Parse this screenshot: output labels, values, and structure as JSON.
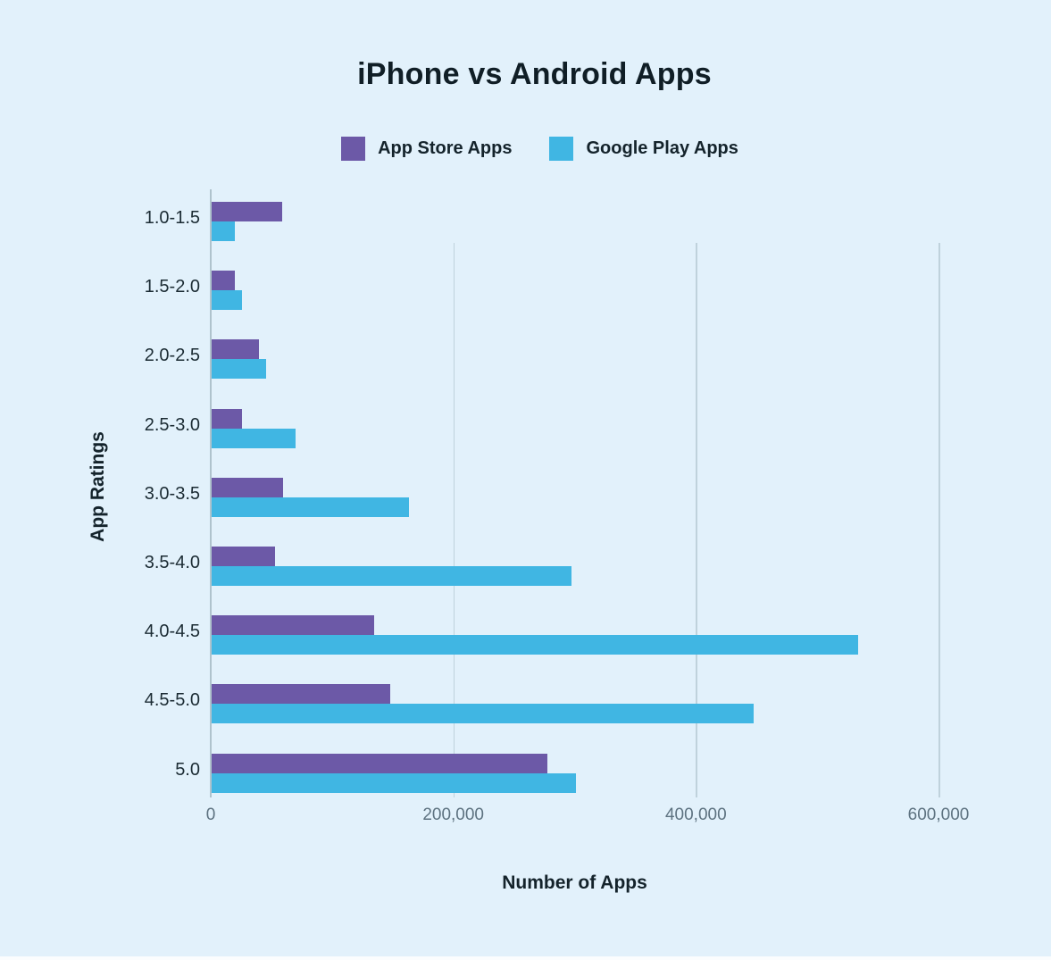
{
  "title": "iPhone vs Android Apps",
  "colors": {
    "background": "#E2F1FB",
    "app_store": "#6C59A7",
    "google_play": "#40B6E3",
    "gridline": "#BFD2DC",
    "axis_line": "#AFC3CD",
    "tick_text": "#5D7280",
    "label_text": "#1B2B33",
    "title_text": "#101E26"
  },
  "legend": [
    {
      "label": "App Store Apps",
      "color": "#6C59A7"
    },
    {
      "label": "Google Play Apps",
      "color": "#40B6E3"
    }
  ],
  "chart_data": {
    "type": "bar",
    "orientation": "horizontal",
    "title": "iPhone vs Android Apps",
    "xlabel": "Number of Apps",
    "ylabel": "App Ratings",
    "categories": [
      "1.0-1.5",
      "1.5-2.0",
      "2.0-2.5",
      "2.5-3.0",
      "3.0-3.5",
      "3.5-4.0",
      "4.0-4.5",
      "4.5-5.0",
      "5.0"
    ],
    "series": [
      {
        "name": "App Store Apps",
        "color": "#6C59A7",
        "values": [
          58000,
          19000,
          39000,
          25000,
          59000,
          52000,
          134000,
          147000,
          277000
        ]
      },
      {
        "name": "Google Play Apps",
        "color": "#40B6E3",
        "values": [
          19000,
          25000,
          45000,
          69000,
          163000,
          297000,
          533000,
          447000,
          300000
        ]
      }
    ],
    "xlim": [
      0,
      636000
    ],
    "xticks": [
      {
        "value": 0,
        "label": "0"
      },
      {
        "value": 200000,
        "label": "200,000"
      },
      {
        "value": 400000,
        "label": "400,000"
      },
      {
        "value": 600000,
        "label": "600,000"
      }
    ],
    "grid": "vertical gridlines at labeled ticks (except 0)",
    "legend_position": "top-center"
  }
}
